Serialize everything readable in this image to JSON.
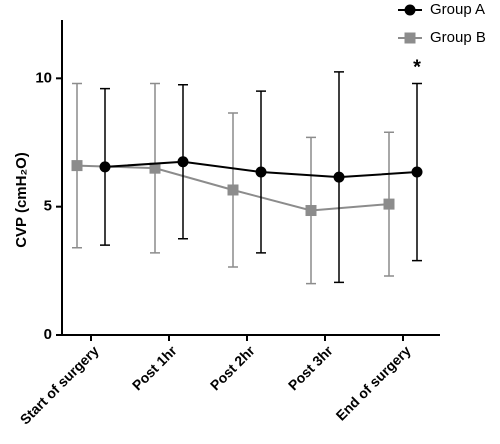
{
  "chart_data": {
    "type": "line",
    "y_label": "CVP (cmH₂O)",
    "categories": [
      "Start of surgery",
      "Post 1hr",
      "Post 2hr",
      "Post 3hr",
      "End of surgery"
    ],
    "series": [
      {
        "name": "Group A",
        "color": "#000000",
        "marker": "circle",
        "values": [
          6.55,
          6.75,
          6.35,
          6.15,
          6.35
        ],
        "errors": [
          3.05,
          3.0,
          3.15,
          4.1,
          3.45
        ]
      },
      {
        "name": "Group B",
        "color": "#8c8c8c",
        "marker": "square",
        "values": [
          6.6,
          6.5,
          5.65,
          4.85,
          5.1
        ],
        "errors": [
          3.2,
          3.3,
          3.0,
          2.85,
          2.8
        ]
      }
    ],
    "annotation": "*",
    "ylim": [
      0,
      12
    ],
    "yticks": [
      0,
      5,
      10
    ],
    "legend": "top-right"
  }
}
